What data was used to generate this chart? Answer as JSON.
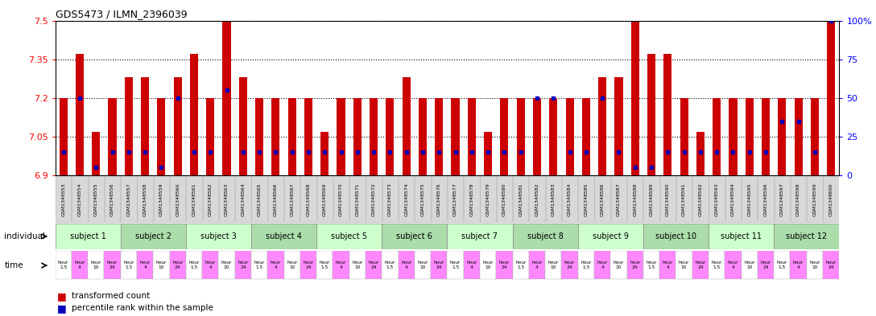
{
  "title": "GDS5473 / ILMN_2396039",
  "samples": [
    "GSM1348553",
    "GSM1348554",
    "GSM1348555",
    "GSM1348556",
    "GSM1348557",
    "GSM1348558",
    "GSM1348559",
    "GSM1348560",
    "GSM1348561",
    "GSM1348562",
    "GSM1348563",
    "GSM1348564",
    "GSM1348565",
    "GSM1348566",
    "GSM1348567",
    "GSM1348568",
    "GSM1348569",
    "GSM1348570",
    "GSM1348571",
    "GSM1348572",
    "GSM1348573",
    "GSM1348574",
    "GSM1348575",
    "GSM1348576",
    "GSM1348577",
    "GSM1348578",
    "GSM1348579",
    "GSM1348580",
    "GSM1348581",
    "GSM1348582",
    "GSM1348583",
    "GSM1348584",
    "GSM1348585",
    "GSM1348586",
    "GSM1348587",
    "GSM1348588",
    "GSM1348589",
    "GSM1348590",
    "GSM1348591",
    "GSM1348592",
    "GSM1348593",
    "GSM1348594",
    "GSM1348595",
    "GSM1348596",
    "GSM1348597",
    "GSM1348598",
    "GSM1348599",
    "GSM1348600"
  ],
  "bar_values": [
    7.2,
    7.37,
    7.07,
    7.2,
    7.28,
    7.28,
    7.2,
    7.28,
    7.37,
    7.2,
    7.5,
    7.28,
    7.2,
    7.2,
    7.2,
    7.2,
    7.07,
    7.2,
    7.2,
    7.2,
    7.2,
    7.28,
    7.2,
    7.2,
    7.2,
    7.2,
    7.07,
    7.2,
    7.2,
    7.2,
    7.2,
    7.2,
    7.2,
    7.28,
    7.28,
    7.5,
    7.37,
    7.37,
    7.2,
    7.07,
    7.2,
    7.2,
    7.2,
    7.2,
    7.2,
    7.2,
    7.2,
    7.5
  ],
  "percentile_values": [
    15,
    50,
    5,
    15,
    15,
    15,
    5,
    50,
    15,
    15,
    55,
    15,
    15,
    15,
    15,
    15,
    15,
    15,
    15,
    15,
    15,
    15,
    15,
    15,
    15,
    15,
    15,
    15,
    15,
    50,
    50,
    15,
    15,
    50,
    15,
    5,
    5,
    15,
    15,
    15,
    15,
    15,
    15,
    15,
    35,
    35,
    15,
    100
  ],
  "y_min": 6.9,
  "y_max": 7.5,
  "y_ticks": [
    6.9,
    7.05,
    7.2,
    7.35,
    7.5
  ],
  "right_y_ticks": [
    0,
    25,
    50,
    75,
    100
  ],
  "subjects": [
    "subject 1",
    "subject 2",
    "subject 3",
    "subject 4",
    "subject 5",
    "subject 6",
    "subject 7",
    "subject 8",
    "subject 9",
    "subject 10",
    "subject 11",
    "subject 12"
  ],
  "subject_colors_alt": [
    "#ccffcc",
    "#aaddaa"
  ],
  "time_colors": [
    "#ffffff",
    "#ff88ff",
    "#ffffff",
    "#ff88ff"
  ],
  "time_labels": [
    "hour\n1.5",
    "hour\n4",
    "hour\n10",
    "hour\n24"
  ],
  "bar_color": "#cc0000",
  "marker_color": "#0000bb",
  "background_color": "#ffffff",
  "tick_label_bg": "#dddddd"
}
